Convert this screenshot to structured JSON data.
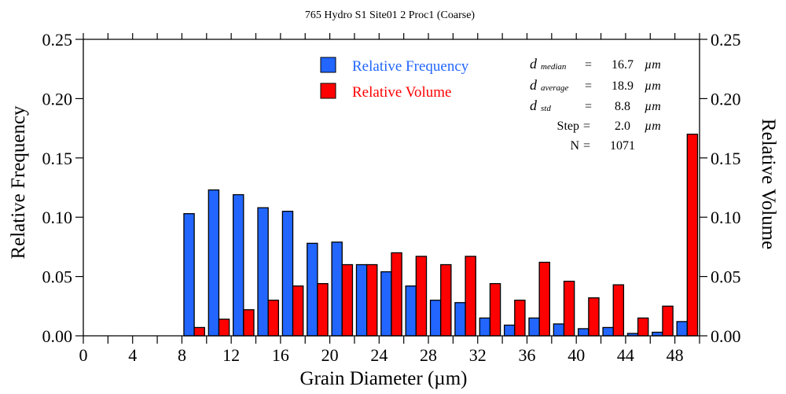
{
  "chart_data": {
    "type": "bar",
    "title": "765 Hydro S1 Site01 2 Proc1 (Coarse)",
    "xlabel": "Grain Diameter (µm)",
    "ylabel": "Relative Frequency",
    "y2label": "Relative Volume",
    "xlim": [
      0,
      50
    ],
    "ylim": [
      0,
      0.25
    ],
    "y2lim": [
      0,
      0.25
    ],
    "x_ticks": [
      0,
      4,
      8,
      12,
      16,
      20,
      24,
      28,
      32,
      36,
      40,
      44,
      48
    ],
    "x_tick_labels": [
      "0",
      "4",
      "8",
      "12",
      "16",
      "20",
      "24",
      "28",
      "32",
      "36",
      "40",
      "44",
      "48"
    ],
    "x_minor_step": 2,
    "y_ticks": [
      0,
      0.05,
      0.1,
      0.15,
      0.2,
      0.25
    ],
    "y_tick_labels": [
      "0.00",
      "0.05",
      "0.10",
      "0.15",
      "0.20",
      "0.25"
    ],
    "grid": false,
    "bin_step": 2,
    "bin_starts": [
      8,
      10,
      12,
      14,
      16,
      18,
      20,
      22,
      24,
      26,
      28,
      30,
      32,
      34,
      36,
      38,
      40,
      42,
      44,
      46,
      48
    ],
    "series": [
      {
        "name": "Relative Frequency",
        "color": "#2266ff",
        "axis": "left",
        "values": [
          0.103,
          0.123,
          0.119,
          0.108,
          0.105,
          0.078,
          0.079,
          0.06,
          0.054,
          0.042,
          0.03,
          0.028,
          0.015,
          0.009,
          0.015,
          0.01,
          0.006,
          0.007,
          0.002,
          0.003,
          0.012
        ]
      },
      {
        "name": "Relative Volume",
        "color": "#ff0000",
        "axis": "right",
        "values": [
          0.007,
          0.014,
          0.022,
          0.03,
          0.042,
          0.044,
          0.06,
          0.06,
          0.07,
          0.067,
          0.06,
          0.067,
          0.044,
          0.03,
          0.062,
          0.046,
          0.032,
          0.043,
          0.015,
          0.025,
          0.17
        ]
      }
    ],
    "legend": {
      "position": "top-center",
      "entries": [
        {
          "label": "Relative Frequency",
          "color": "#2266ff"
        },
        {
          "label": "Relative Volume",
          "color": "#ff0000"
        }
      ]
    },
    "annotations": {
      "stats": [
        {
          "symbol": "d",
          "subscript": "median",
          "eq": "=",
          "value": "16.7",
          "unit": "µm"
        },
        {
          "symbol": "d",
          "subscript": "average",
          "eq": "=",
          "value": "18.9",
          "unit": "µm"
        },
        {
          "symbol": "d",
          "subscript": "std",
          "eq": "=",
          "value": "8.8",
          "unit": "µm"
        },
        {
          "symbol": "Step",
          "subscript": "",
          "eq": "=",
          "value": "2.0",
          "unit": "µm"
        },
        {
          "symbol": "N",
          "subscript": "",
          "eq": "=",
          "value": "1071",
          "unit": ""
        }
      ]
    }
  }
}
